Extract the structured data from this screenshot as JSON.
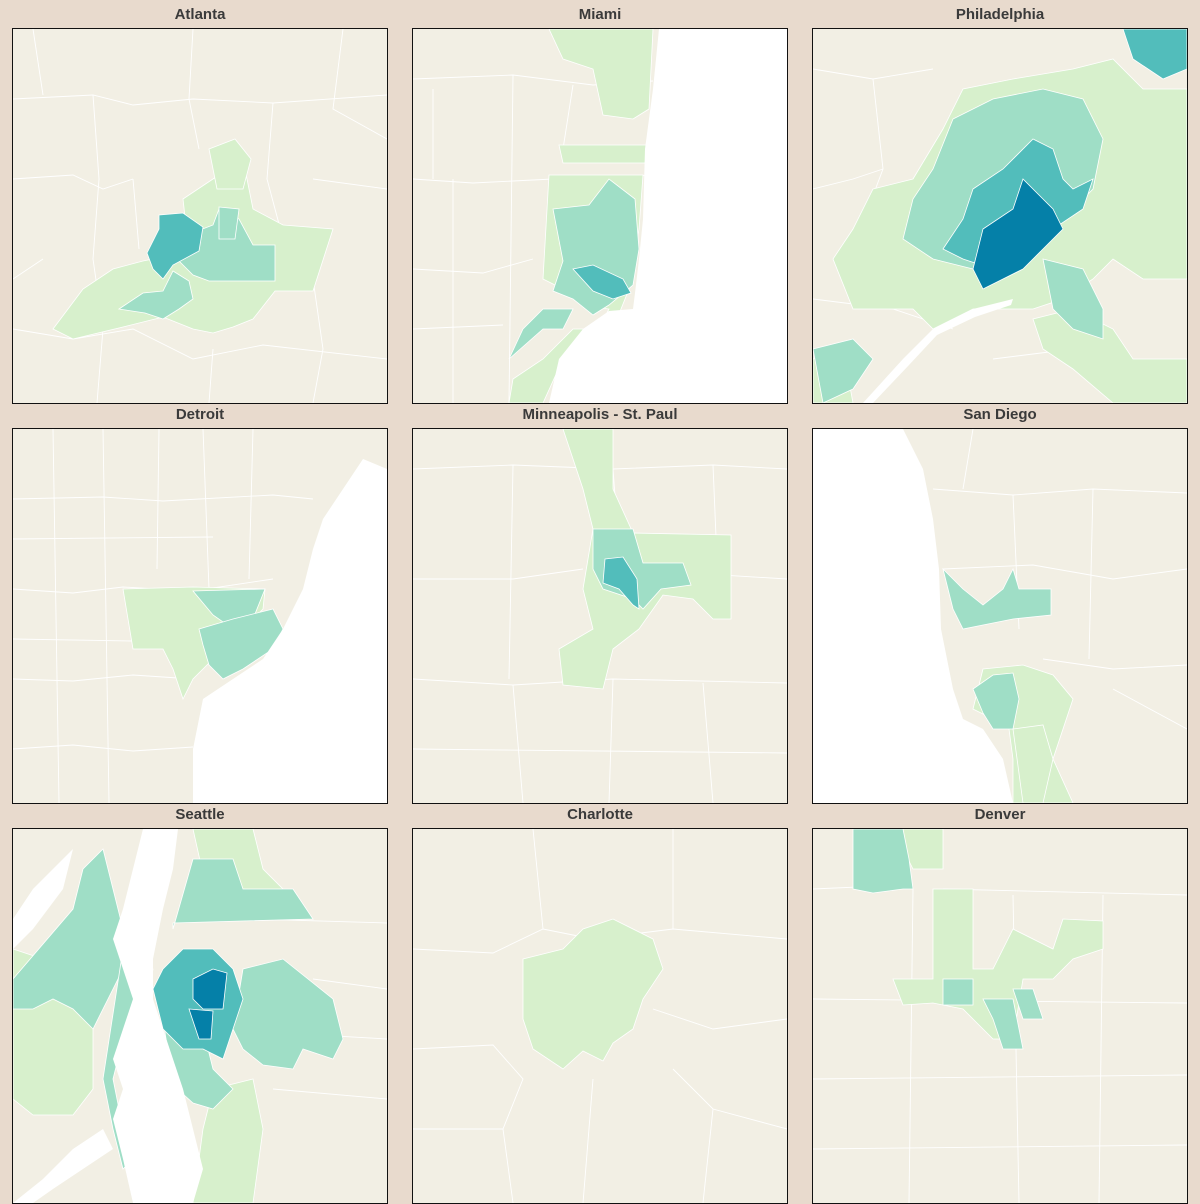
{
  "panels": [
    {
      "title": "Atlanta"
    },
    {
      "title": "Miami"
    },
    {
      "title": "Philadelphia"
    },
    {
      "title": "Detroit"
    },
    {
      "title": "Minneapolis - St. Paul"
    },
    {
      "title": "San Diego"
    },
    {
      "title": "Seattle"
    },
    {
      "title": "Charlotte"
    },
    {
      "title": "Denver"
    }
  ],
  "colors": {
    "page_background": "#e8dacd",
    "map_background": "#f2efe4",
    "water": "#ffffff",
    "boundary": "#ffffff",
    "tier_1": "#d7f0cc",
    "tier_2": "#9fdec6",
    "tier_3": "#52bdbb",
    "tier_4": "#0580a8"
  }
}
